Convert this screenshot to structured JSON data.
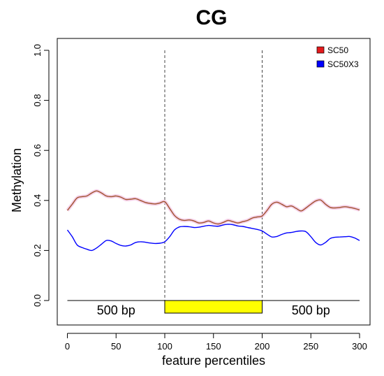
{
  "chart_data": {
    "type": "line",
    "title": "CG",
    "xlabel": "feature percentiles",
    "ylabel": "Methylation",
    "xlim": [
      -10,
      310
    ],
    "ylim": [
      -0.05,
      1.0
    ],
    "x_ticks": [
      0,
      50,
      100,
      150,
      200,
      250,
      300
    ],
    "y_ticks": [
      0.0,
      0.2,
      0.4,
      0.6,
      0.8,
      1.0
    ],
    "y_tick_labels": [
      "0.0",
      "0.2",
      "0.4",
      "0.6",
      "0.8",
      "1.0"
    ],
    "legend_position": "top-right",
    "grid": false,
    "boundaries": [
      100,
      200
    ],
    "gene_model": {
      "baseline_y": 0.0,
      "feature_start": 100,
      "feature_end": 200,
      "feature_color": "#ffff00",
      "left_label": "500 bp",
      "right_label": "500 bp"
    },
    "series": [
      {
        "name": "SC50",
        "color": "#a0522d",
        "legend_color": "#e41a1c",
        "x": [
          0,
          5,
          10,
          15,
          20,
          25,
          30,
          35,
          40,
          45,
          50,
          55,
          60,
          65,
          70,
          75,
          80,
          85,
          90,
          95,
          100,
          105,
          110,
          115,
          120,
          125,
          130,
          135,
          140,
          145,
          150,
          155,
          160,
          165,
          170,
          175,
          180,
          185,
          190,
          195,
          200,
          205,
          210,
          215,
          220,
          225,
          230,
          235,
          240,
          245,
          250,
          255,
          260,
          265,
          270,
          275,
          280,
          285,
          290,
          295,
          300
        ],
        "y": [
          0.36,
          0.385,
          0.41,
          0.415,
          0.418,
          0.43,
          0.438,
          0.43,
          0.418,
          0.415,
          0.418,
          0.413,
          0.404,
          0.405,
          0.407,
          0.4,
          0.392,
          0.388,
          0.386,
          0.39,
          0.395,
          0.368,
          0.34,
          0.325,
          0.32,
          0.322,
          0.318,
          0.31,
          0.312,
          0.318,
          0.31,
          0.306,
          0.312,
          0.32,
          0.315,
          0.31,
          0.315,
          0.32,
          0.33,
          0.334,
          0.338,
          0.36,
          0.385,
          0.393,
          0.385,
          0.375,
          0.378,
          0.368,
          0.358,
          0.37,
          0.385,
          0.398,
          0.402,
          0.385,
          0.372,
          0.37,
          0.372,
          0.375,
          0.372,
          0.368,
          0.362
        ]
      },
      {
        "name": "SC50X3",
        "color": "#0000ff",
        "legend_color": "#0000ff",
        "x": [
          0,
          5,
          10,
          15,
          20,
          25,
          30,
          35,
          40,
          45,
          50,
          55,
          60,
          65,
          70,
          75,
          80,
          85,
          90,
          95,
          100,
          105,
          110,
          115,
          120,
          125,
          130,
          135,
          140,
          145,
          150,
          155,
          160,
          165,
          170,
          175,
          180,
          185,
          190,
          195,
          200,
          205,
          210,
          215,
          220,
          225,
          230,
          235,
          240,
          245,
          250,
          255,
          260,
          265,
          270,
          275,
          280,
          285,
          290,
          295,
          300
        ],
        "y": [
          0.282,
          0.255,
          0.222,
          0.212,
          0.205,
          0.2,
          0.21,
          0.225,
          0.24,
          0.238,
          0.228,
          0.22,
          0.218,
          0.222,
          0.232,
          0.235,
          0.233,
          0.23,
          0.228,
          0.229,
          0.235,
          0.255,
          0.282,
          0.294,
          0.296,
          0.295,
          0.292,
          0.293,
          0.297,
          0.3,
          0.298,
          0.297,
          0.302,
          0.305,
          0.303,
          0.298,
          0.296,
          0.292,
          0.288,
          0.284,
          0.278,
          0.265,
          0.254,
          0.256,
          0.264,
          0.27,
          0.272,
          0.276,
          0.278,
          0.275,
          0.255,
          0.232,
          0.222,
          0.232,
          0.248,
          0.253,
          0.254,
          0.255,
          0.256,
          0.25,
          0.24
        ]
      }
    ]
  }
}
